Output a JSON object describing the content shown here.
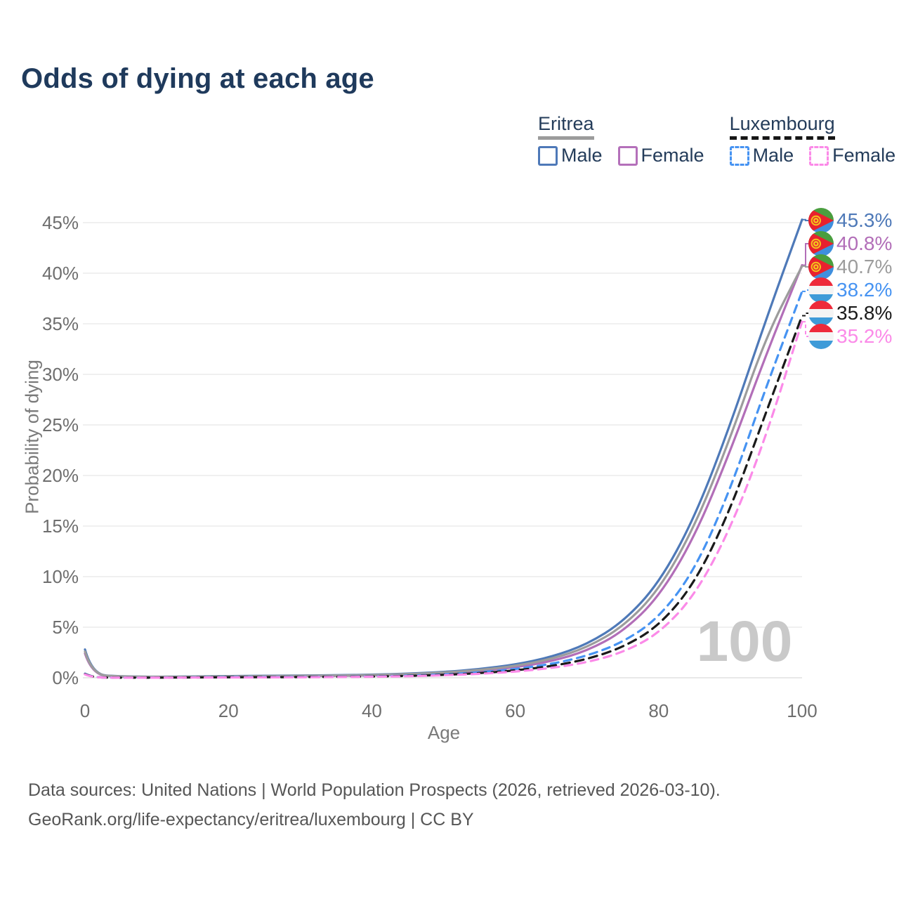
{
  "title": "Odds of dying at each age",
  "watermark": "100",
  "legend": {
    "groups": [
      {
        "label": "Eritrea",
        "line_style": "solid",
        "line_color": "#9b9b9b",
        "items": [
          {
            "label": "Male",
            "swatch_color": "#4e79b8",
            "swatch_style": "solid"
          },
          {
            "label": "Female",
            "swatch_color": "#b470ba",
            "swatch_style": "solid"
          }
        ]
      },
      {
        "label": "Luxembourg",
        "line_style": "dashed",
        "line_color": "#161616",
        "items": [
          {
            "label": "Male",
            "swatch_color": "#4693f2",
            "swatch_style": "dashed"
          },
          {
            "label": "Female",
            "swatch_color": "#fb8ae8",
            "swatch_style": "dashed"
          }
        ]
      }
    ]
  },
  "chart_data": {
    "type": "line",
    "title": "Odds of dying at each age",
    "xlabel": "Age",
    "ylabel": "Probability of dying",
    "xlim": [
      0,
      100
    ],
    "ylim": [
      0,
      47
    ],
    "grid": true,
    "legend_position": "top-right",
    "x_ticks": [
      0,
      20,
      40,
      60,
      80,
      100
    ],
    "y_ticks_percent": [
      0,
      5,
      10,
      15,
      20,
      25,
      30,
      35,
      40,
      45
    ],
    "x": [
      0,
      1,
      5,
      10,
      15,
      20,
      25,
      30,
      35,
      40,
      45,
      50,
      55,
      60,
      65,
      70,
      75,
      80,
      85,
      90,
      95,
      100
    ],
    "series": [
      {
        "name": "Eritrea Male",
        "country": "Eritrea",
        "sex": "Male",
        "color": "#4e79b8",
        "label_color": "#4e79b8",
        "dash": null,
        "flag": "eritrea",
        "end_label": "45.3%",
        "values": [
          2.8,
          0.3,
          0.13,
          0.1,
          0.12,
          0.17,
          0.2,
          0.22,
          0.25,
          0.3,
          0.4,
          0.57,
          0.85,
          1.3,
          2.05,
          3.3,
          5.5,
          9.3,
          15.8,
          25.0,
          35.5,
          45.3
        ]
      },
      {
        "name": "Eritrea Female",
        "country": "Eritrea",
        "sex": "Female",
        "color": "#b26eb8",
        "label_color": "#b26eb8",
        "dash": null,
        "flag": "eritrea",
        "end_label": "40.8%",
        "values": [
          2.4,
          0.27,
          0.11,
          0.08,
          0.09,
          0.12,
          0.14,
          0.16,
          0.19,
          0.23,
          0.31,
          0.44,
          0.66,
          1.02,
          1.62,
          2.65,
          4.55,
          7.95,
          13.9,
          22.4,
          32.0,
          40.8
        ]
      },
      {
        "name": "Eritrea",
        "country": "Eritrea",
        "sex": "Both",
        "color": "#9c9c9c",
        "label_color": "#9c9c9c",
        "dash": null,
        "flag": "eritrea",
        "end_label": "40.7%",
        "values": [
          2.6,
          0.29,
          0.12,
          0.09,
          0.11,
          0.15,
          0.17,
          0.19,
          0.22,
          0.27,
          0.36,
          0.51,
          0.76,
          1.16,
          1.84,
          2.98,
          5.03,
          8.63,
          14.9,
          23.7,
          33.8,
          40.7
        ]
      },
      {
        "name": "Luxembourg Male",
        "country": "Luxembourg",
        "sex": "Male",
        "color": "#4693f2",
        "label_color": "#4693f2",
        "dash": "11 8",
        "flag": "luxembourg",
        "end_label": "38.2%",
        "values": [
          0.4,
          0.03,
          0.01,
          0.01,
          0.04,
          0.07,
          0.08,
          0.09,
          0.11,
          0.14,
          0.21,
          0.33,
          0.53,
          0.85,
          1.35,
          2.15,
          3.5,
          5.9,
          10.6,
          18.6,
          28.8,
          38.2
        ]
      },
      {
        "name": "Luxembourg",
        "country": "Luxembourg",
        "sex": "Both",
        "color": "#1a1a1a",
        "label_color": "#1a1a1a",
        "dash": "12 8",
        "flag": "luxembourg",
        "end_label": "35.8%",
        "values": [
          0.37,
          0.03,
          0.01,
          0.01,
          0.03,
          0.05,
          0.06,
          0.07,
          0.09,
          0.12,
          0.18,
          0.28,
          0.45,
          0.72,
          1.14,
          1.82,
          3.0,
          5.1,
          9.3,
          16.6,
          26.3,
          35.8
        ]
      },
      {
        "name": "Luxembourg Female",
        "country": "Luxembourg",
        "sex": "Female",
        "color": "#fb8ae8",
        "label_color": "#fb8ae8",
        "dash": "11 8",
        "flag": "luxembourg",
        "end_label": "35.2%",
        "values": [
          0.33,
          0.02,
          0.01,
          0.01,
          0.02,
          0.03,
          0.04,
          0.05,
          0.07,
          0.1,
          0.15,
          0.24,
          0.38,
          0.6,
          0.95,
          1.52,
          2.5,
          4.35,
          8.1,
          14.7,
          23.9,
          35.2
        ]
      }
    ]
  },
  "colors": {
    "title": "#1f3a5c",
    "legend_text": "#243c5a",
    "axis_text": "#6e6e6e",
    "grid": "#ececec",
    "zero_line": "#e0e0e0",
    "watermark": "#c9c9c9",
    "source_text": "#565656",
    "flag_eritrea_green": "#4a9e3f",
    "flag_eritrea_blue": "#3f8fde",
    "flag_eritrea_red": "#e8212e",
    "flag_eritrea_gold": "#f5c31c",
    "flag_lux_red": "#ee2a3b",
    "flag_lux_white": "#f4f4f4",
    "flag_lux_blue": "#3f9bd8"
  },
  "source": {
    "line1": "Data sources: United Nations | World Population Prospects (2026, retrieved 2026-03-10).",
    "line2": "GeoRank.org/life-expectancy/eritrea/luxembourg | CC BY"
  }
}
